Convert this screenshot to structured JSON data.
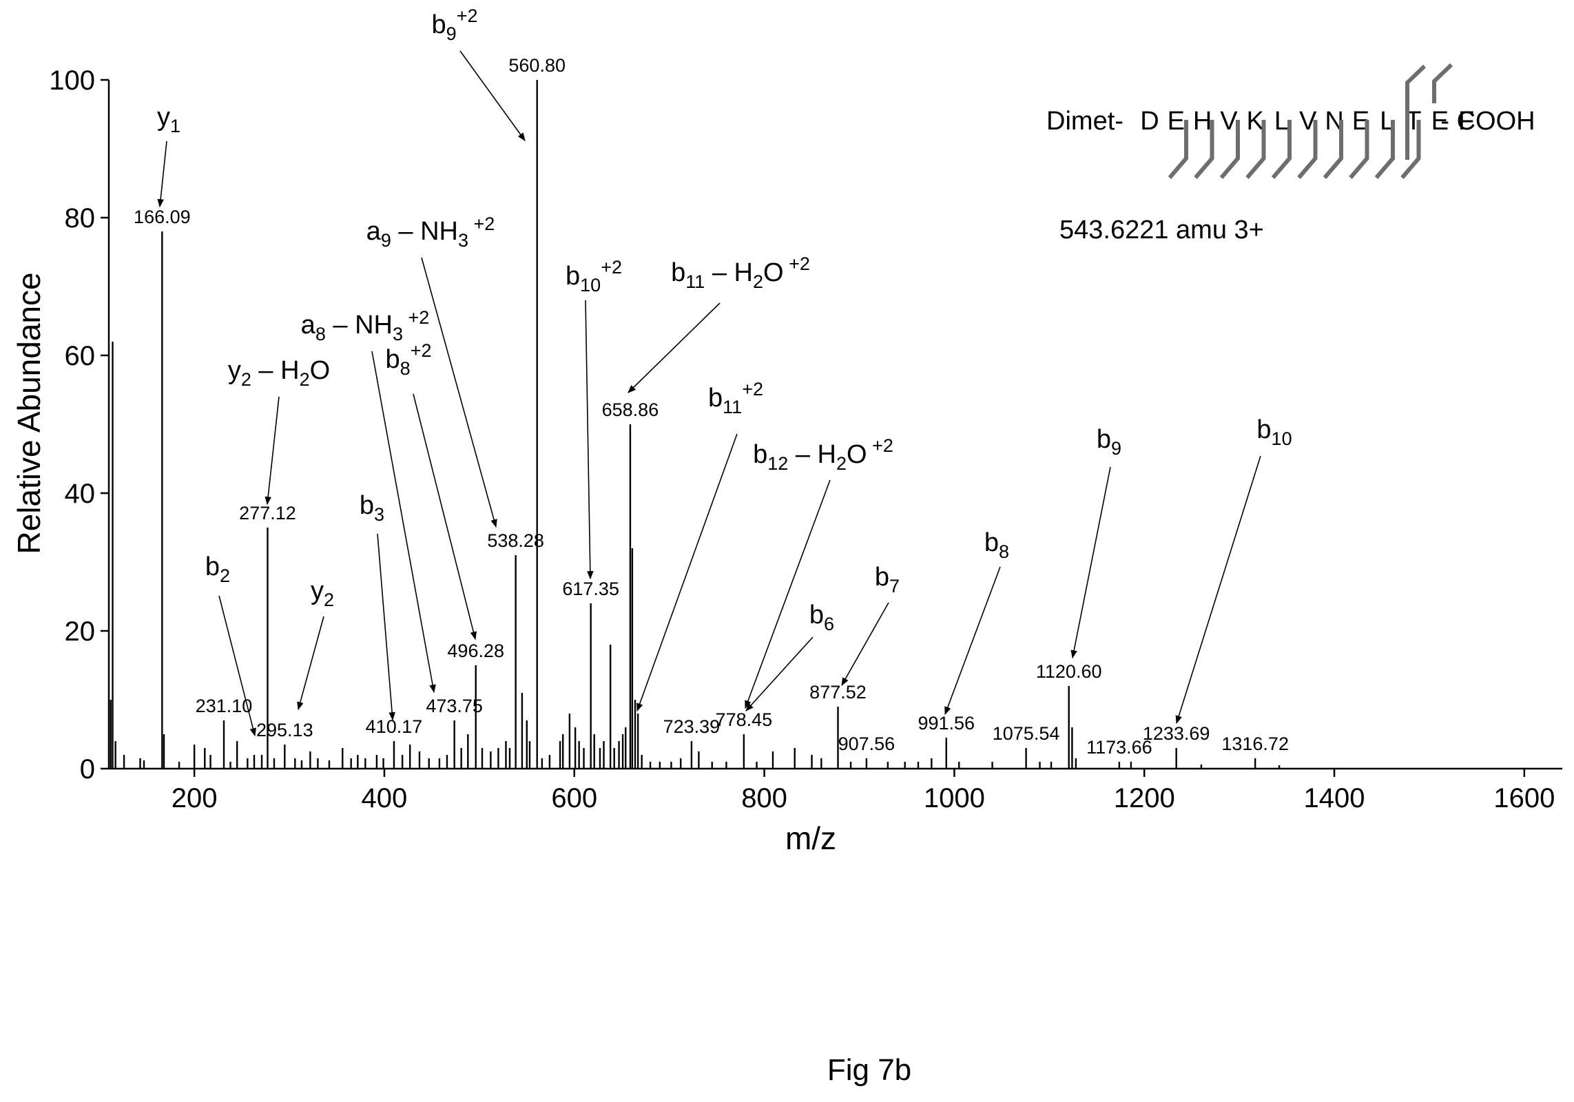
{
  "chart_data": {
    "type": "bar",
    "xlabel": "m/z",
    "ylabel": "Relative Abundance",
    "xlim": [
      110,
      1640
    ],
    "ylim": [
      0,
      100
    ],
    "xticks": [
      200,
      400,
      600,
      800,
      1000,
      1200,
      1400,
      1600
    ],
    "yticks": [
      0,
      20,
      40,
      60,
      80,
      100
    ],
    "peaks": [
      {
        "mz": 112,
        "rel": 10
      },
      {
        "mz": 114,
        "rel": 62
      },
      {
        "mz": 117,
        "rel": 4
      },
      {
        "mz": 126,
        "rel": 2
      },
      {
        "mz": 143,
        "rel": 1.5
      },
      {
        "mz": 147,
        "rel": 1.2
      },
      {
        "mz": 166.09,
        "rel": 78,
        "label": "166.09"
      },
      {
        "mz": 168,
        "rel": 5
      },
      {
        "mz": 184,
        "rel": 1
      },
      {
        "mz": 200,
        "rel": 3.5
      },
      {
        "mz": 211,
        "rel": 3
      },
      {
        "mz": 217,
        "rel": 2
      },
      {
        "mz": 231.1,
        "rel": 7,
        "label": "231.10"
      },
      {
        "mz": 238,
        "rel": 1
      },
      {
        "mz": 245,
        "rel": 4
      },
      {
        "mz": 256,
        "rel": 1.5
      },
      {
        "mz": 263,
        "rel": 2
      },
      {
        "mz": 271,
        "rel": 2
      },
      {
        "mz": 277.12,
        "rel": 35,
        "label": "277.12"
      },
      {
        "mz": 284,
        "rel": 1.5
      },
      {
        "mz": 295.13,
        "rel": 3.5,
        "label": "295.13"
      },
      {
        "mz": 306,
        "rel": 1.5
      },
      {
        "mz": 313,
        "rel": 1.2
      },
      {
        "mz": 322,
        "rel": 2.5
      },
      {
        "mz": 330,
        "rel": 1.5
      },
      {
        "mz": 342,
        "rel": 1.2
      },
      {
        "mz": 356,
        "rel": 3
      },
      {
        "mz": 365,
        "rel": 1.5
      },
      {
        "mz": 372,
        "rel": 2
      },
      {
        "mz": 380,
        "rel": 1.5
      },
      {
        "mz": 392,
        "rel": 2
      },
      {
        "mz": 399,
        "rel": 1.5
      },
      {
        "mz": 410.17,
        "rel": 4,
        "label": "410.17"
      },
      {
        "mz": 419,
        "rel": 2
      },
      {
        "mz": 427,
        "rel": 3.5
      },
      {
        "mz": 437,
        "rel": 2.5
      },
      {
        "mz": 447,
        "rel": 1.5
      },
      {
        "mz": 458,
        "rel": 1.5
      },
      {
        "mz": 466,
        "rel": 2
      },
      {
        "mz": 473.75,
        "rel": 7,
        "label": "473.75"
      },
      {
        "mz": 481,
        "rel": 3
      },
      {
        "mz": 488,
        "rel": 5
      },
      {
        "mz": 496.28,
        "rel": 15,
        "label": "496.28"
      },
      {
        "mz": 503,
        "rel": 3
      },
      {
        "mz": 512,
        "rel": 2.5
      },
      {
        "mz": 520,
        "rel": 3
      },
      {
        "mz": 528,
        "rel": 4
      },
      {
        "mz": 532,
        "rel": 3
      },
      {
        "mz": 538.28,
        "rel": 31,
        "label": "538.28"
      },
      {
        "mz": 545,
        "rel": 11
      },
      {
        "mz": 550,
        "rel": 7
      },
      {
        "mz": 553,
        "rel": 4
      },
      {
        "mz": 560.8,
        "rel": 100,
        "label": "560.80"
      },
      {
        "mz": 566,
        "rel": 1.5
      },
      {
        "mz": 574,
        "rel": 2
      },
      {
        "mz": 585,
        "rel": 4
      },
      {
        "mz": 588,
        "rel": 5
      },
      {
        "mz": 595,
        "rel": 8
      },
      {
        "mz": 601,
        "rel": 6
      },
      {
        "mz": 605,
        "rel": 4
      },
      {
        "mz": 610,
        "rel": 3
      },
      {
        "mz": 617.35,
        "rel": 24,
        "label": "617.35"
      },
      {
        "mz": 621,
        "rel": 5
      },
      {
        "mz": 627,
        "rel": 3
      },
      {
        "mz": 631,
        "rel": 4
      },
      {
        "mz": 638,
        "rel": 18
      },
      {
        "mz": 642,
        "rel": 3
      },
      {
        "mz": 647,
        "rel": 4
      },
      {
        "mz": 651,
        "rel": 5
      },
      {
        "mz": 654,
        "rel": 6
      },
      {
        "mz": 658.86,
        "rel": 50,
        "label": "658.86"
      },
      {
        "mz": 661,
        "rel": 32
      },
      {
        "mz": 664,
        "rel": 10
      },
      {
        "mz": 667,
        "rel": 8
      },
      {
        "mz": 671,
        "rel": 2
      },
      {
        "mz": 680,
        "rel": 1
      },
      {
        "mz": 690,
        "rel": 1
      },
      {
        "mz": 702,
        "rel": 1
      },
      {
        "mz": 712,
        "rel": 1.5
      },
      {
        "mz": 723.39,
        "rel": 4,
        "label": "723.39"
      },
      {
        "mz": 731,
        "rel": 2.5
      },
      {
        "mz": 745,
        "rel": 1
      },
      {
        "mz": 760,
        "rel": 1
      },
      {
        "mz": 778.45,
        "rel": 5,
        "label": "778.45"
      },
      {
        "mz": 792,
        "rel": 1
      },
      {
        "mz": 809,
        "rel": 2.5
      },
      {
        "mz": 832,
        "rel": 3
      },
      {
        "mz": 850,
        "rel": 2
      },
      {
        "mz": 860,
        "rel": 1.5
      },
      {
        "mz": 877.52,
        "rel": 9,
        "label": "877.52"
      },
      {
        "mz": 891,
        "rel": 1
      },
      {
        "mz": 907.56,
        "rel": 1.5,
        "label": "907.56"
      },
      {
        "mz": 930,
        "rel": 1
      },
      {
        "mz": 948,
        "rel": 1
      },
      {
        "mz": 962,
        "rel": 1
      },
      {
        "mz": 976,
        "rel": 1.5
      },
      {
        "mz": 991.56,
        "rel": 4.5,
        "label": "991.56"
      },
      {
        "mz": 1005,
        "rel": 1
      },
      {
        "mz": 1040,
        "rel": 1
      },
      {
        "mz": 1075.54,
        "rel": 3,
        "label": "1075.54"
      },
      {
        "mz": 1090,
        "rel": 1
      },
      {
        "mz": 1102,
        "rel": 1
      },
      {
        "mz": 1120.6,
        "rel": 12,
        "label": "1120.60"
      },
      {
        "mz": 1124,
        "rel": 6
      },
      {
        "mz": 1128,
        "rel": 1.5
      },
      {
        "mz": 1173.66,
        "rel": 1,
        "label": "1173.66"
      },
      {
        "mz": 1186,
        "rel": 1
      },
      {
        "mz": 1233.69,
        "rel": 3,
        "label": "1233.69"
      },
      {
        "mz": 1260,
        "rel": 0.6
      },
      {
        "mz": 1316.72,
        "rel": 1.5,
        "label": "1316.72"
      },
      {
        "mz": 1342,
        "rel": 0.5
      }
    ]
  },
  "annotations": [
    {
      "base": "y",
      "sub": "1",
      "sup": ""
    },
    {
      "base": "b",
      "sub": "9",
      "sup": "+2"
    },
    {
      "base": "a",
      "sub": "9",
      "mid": " – NH",
      "sub2": "3",
      "sup": " +2"
    },
    {
      "base": "b",
      "sub": "10",
      "sup": "+2"
    },
    {
      "base": "b",
      "sub": "11",
      "mid": " – H",
      "sub2": "2",
      "tail": "O",
      "sup": " +2"
    },
    {
      "base": "a",
      "sub": "8",
      "mid": " – NH",
      "sub2": "3",
      "sup": " +2"
    },
    {
      "base": "y",
      "sub": "2",
      "mid": " – H",
      "sub2": "2",
      "tail": "O",
      "sup": ""
    },
    {
      "base": "b",
      "sub": "8",
      "sup": "+2"
    },
    {
      "base": "b",
      "sub": "11",
      "sup": "+2"
    },
    {
      "base": "b",
      "sub": "12",
      "mid": " – H",
      "sub2": "2",
      "tail": "O",
      "sup": " +2"
    },
    {
      "base": "b",
      "sub": "3",
      "sup": ""
    },
    {
      "base": "b",
      "sub": "2",
      "sup": ""
    },
    {
      "base": "y",
      "sub": "2",
      "sup": ""
    },
    {
      "base": "b",
      "sub": "6",
      "sup": ""
    },
    {
      "base": "b",
      "sub": "7",
      "sup": ""
    },
    {
      "base": "b",
      "sub": "8",
      "sup": ""
    },
    {
      "base": "b",
      "sub": "9",
      "sup": ""
    },
    {
      "base": "b",
      "sub": "10",
      "sup": ""
    }
  ],
  "peptide": {
    "prefix": "Dimet-",
    "residues": [
      "D",
      "E",
      "H",
      "V",
      "K",
      "L",
      "V",
      "N",
      "E",
      "L",
      "T",
      "E",
      "F"
    ],
    "suffix": "- COOH",
    "precursor": "543.6221 amu 3+"
  },
  "figure_label": "Fig 7b",
  "colors": {
    "ink": "#000000",
    "fragment_marks": "#6e6e6e"
  }
}
